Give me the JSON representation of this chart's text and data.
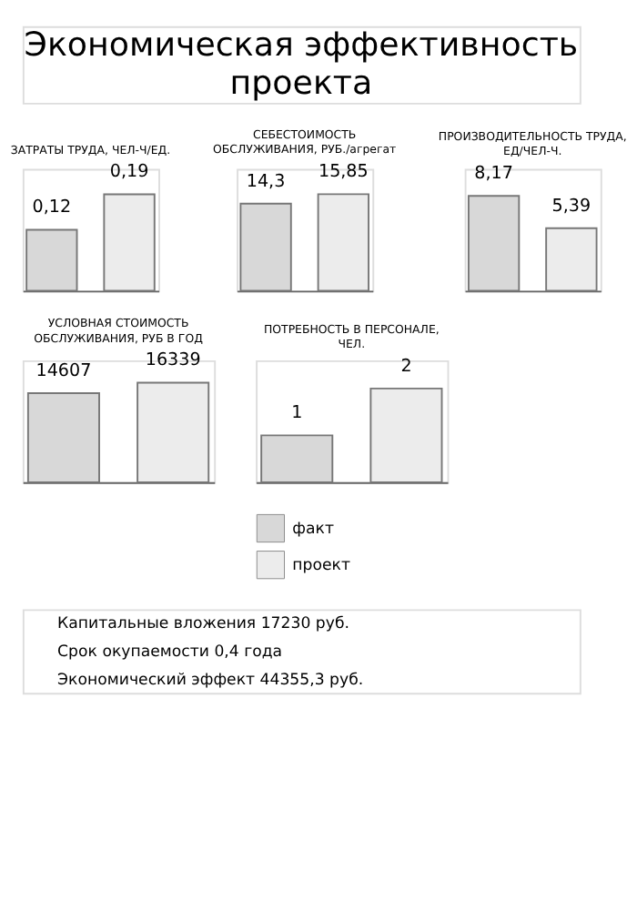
{
  "chart_data": [
    {
      "type": "other",
      "title": "Экономическая эффективность проекта"
    },
    {
      "type": "bar",
      "title": "ЗАТРАТЫ ТРУДА, ЧЕЛ-Ч/ЕД.",
      "categories": [
        null
      ],
      "ylim": [
        0,
        0.24
      ],
      "tick_labels": false,
      "series": [
        {
          "color": "#d8d8d8",
          "values": [
            0.12
          ],
          "value_labels": [
            "0,12"
          ]
        },
        {
          "color": "#ececec",
          "values": [
            0.19
          ],
          "value_labels": [
            "0,19"
          ]
        }
      ]
    },
    {
      "type": "bar",
      "title": "СЕБЕСТОИМОСТЬ ОБСЛУЖИВАНИЯ, РУБ./агрегат",
      "categories": [
        null
      ],
      "ylim": [
        0,
        20
      ],
      "tick_labels": false,
      "series": [
        {
          "color": "#d8d8d8",
          "values": [
            14.3
          ],
          "value_labels": [
            "14,3"
          ]
        },
        {
          "color": "#ececec",
          "values": [
            15.85
          ],
          "value_labels": [
            "15,85"
          ]
        }
      ]
    },
    {
      "type": "bar",
      "title": "ПРОИЗВОДИТЕЛЬНОСТЬ ТРУДА, ЕД/ЧЕЛ-Ч.",
      "categories": [
        null
      ],
      "ylim": [
        0,
        10.5
      ],
      "tick_labels": false,
      "series": [
        {
          "color": "#d8d8d8",
          "values": [
            8.17
          ],
          "value_labels": [
            "8,17"
          ]
        },
        {
          "color": "#ececec",
          "values": [
            5.39
          ],
          "value_labels": [
            "5,39"
          ]
        }
      ]
    },
    {
      "type": "bar",
      "title": "УСЛОВНАЯ СТОИМОСТЬ ОБСЛУЖИВАНИЯ, РУБ В ГОД",
      "categories": [
        null
      ],
      "ylim": [
        0,
        20000
      ],
      "tick_labels": false,
      "series": [
        {
          "color": "#d8d8d8",
          "values": [
            14607
          ],
          "value_labels": [
            "14607"
          ]
        },
        {
          "color": "#ececec",
          "values": [
            16339
          ],
          "value_labels": [
            "16339"
          ]
        }
      ]
    },
    {
      "type": "bar",
      "title": "ПОТРЕБНОСТЬ В ПЕРСОНАЛЕ, ЧЕЛ.",
      "categories": [
        null
      ],
      "ylim": [
        0,
        2.6
      ],
      "tick_labels": false,
      "legend": "bottom",
      "series": [
        {
          "name": "факт",
          "color": "#d8d8d8",
          "values": [
            1
          ],
          "value_labels": [
            "1"
          ]
        },
        {
          "name": "проект",
          "color": "#ececec",
          "values": [
            2
          ],
          "value_labels": [
            "2"
          ]
        }
      ]
    },
    {
      "type": "other",
      "annotations": [
        "Капитальные вложения 17230 руб.",
        "Срок окупаемости 0,4 года",
        "Экономический эффект 44355,3 руб."
      ]
    }
  ]
}
